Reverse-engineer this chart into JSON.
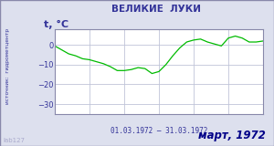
{
  "title": "ВЕЛИКИЕ  ЛУКИ",
  "ylabel": "t, °C",
  "xlabel": "01.03.1972 – 31.03.1972",
  "footer": "март, 1972",
  "source_label": "источник:  гидрометцентр",
  "watermark": "lab127",
  "ylim": [
    -35,
    8
  ],
  "yticks": [
    0,
    -10,
    -20,
    -30
  ],
  "line_color": "#00bb00",
  "bg_color": "#dde0ee",
  "plot_bg": "#ffffff",
  "grid_color": "#c0c4d8",
  "border_color": "#8888aa",
  "title_color": "#333399",
  "label_color": "#333399",
  "footer_color": "#000088",
  "watermark_color": "#aaaacc",
  "temperatures": [
    -0.5,
    -2.5,
    -4.5,
    -5.5,
    -7.0,
    -7.5,
    -8.5,
    -9.5,
    -11.0,
    -13.0,
    -13.0,
    -12.5,
    -11.5,
    -12.0,
    -14.5,
    -13.5,
    -10.0,
    -5.5,
    -1.5,
    1.5,
    2.5,
    3.0,
    1.5,
    0.5,
    -0.5,
    3.5,
    4.5,
    3.5,
    1.5,
    1.5,
    2.0
  ]
}
